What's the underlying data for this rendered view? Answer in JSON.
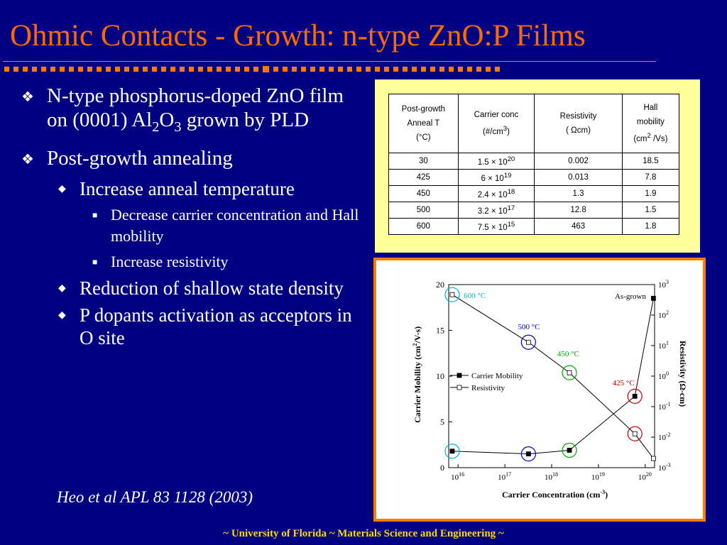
{
  "slide": {
    "title": "Ohmic Contacts - Growth: n-type ZnO:P Films",
    "footer": "~ University of Florida ~ Materials Science and Engineering ~",
    "citation": "Heo et al APL 83 1128 (2003)"
  },
  "bullets": {
    "b1_a": "N-type phosphorus-doped ZnO film on (0001) Al",
    "b1_a_sub1": "2",
    "b1_a_mid": "O",
    "b1_a_sub2": "3",
    "b1_a_end": " grown by PLD",
    "b2": "Post-growth annealing",
    "b2_1": "Increase anneal temperature",
    "b2_1_1": "Decrease carrier concentration and Hall mobility",
    "b2_1_2": "Increase resistivity",
    "b2_2": "Reduction of shallow state density",
    "b2_3": "P dopants activation as acceptors in O site"
  },
  "table": {
    "headers": {
      "anneal_1": "Post-growth",
      "anneal_2": "Anneal T",
      "anneal_3": "(°C)",
      "conc_1": "Carrier conc",
      "conc_2": "(#/cm",
      "conc_sup": "3",
      "conc_3": ")",
      "res_1": "Resistivity",
      "res_2": "( Ωcm)",
      "hall_1": "Hall",
      "hall_2": "mobility",
      "hall_3": "(cm",
      "hall_sup": "2",
      "hall_4": " /Vs)"
    },
    "rows": [
      {
        "t": "30",
        "mant": "1.5  × 10",
        "exp": "20",
        "res": "0.002",
        "mob": "18.5"
      },
      {
        "t": "425",
        "mant": "6  × 10",
        "exp": "19",
        "res": "0.013",
        "mob": "7.8"
      },
      {
        "t": "450",
        "mant": "2.4  × 10",
        "exp": "18",
        "res": "1.3",
        "mob": "1.9"
      },
      {
        "t": "500",
        "mant": "3.2  × 10",
        "exp": "17",
        "res": "12.8",
        "mob": "1.5"
      },
      {
        "t": "600",
        "mant": "7.5  × 10",
        "exp": "15",
        "res": "463",
        "mob": "1.8"
      }
    ]
  },
  "chart_data": {
    "type": "line",
    "xlabel": "Carrier Concentration (cm-3)",
    "ylabel": "Carrier Mobility (cm2/V-s)",
    "y2label": "Resistivity (Ω-cm)",
    "xscale": "log",
    "xlim_exp": [
      15.8,
      20.2
    ],
    "xticks_exp": [
      16,
      17,
      18,
      19,
      20
    ],
    "ylim": [
      0,
      20
    ],
    "yticks": [
      0,
      5,
      10,
      15,
      20
    ],
    "y2scale": "log",
    "y2lim_exp": [
      -3,
      3
    ],
    "y2ticks_exp": [
      3,
      2,
      1,
      0,
      -1,
      -2,
      -3
    ],
    "series": [
      {
        "name": "Carrier Mobility",
        "marker": "filled-square",
        "axis": "left",
        "points": [
          [
            15.875,
            1.8
          ],
          [
            17.505,
            1.5
          ],
          [
            18.38,
            1.9
          ],
          [
            19.778,
            7.8
          ],
          [
            20.176,
            18.5
          ]
        ]
      },
      {
        "name": "Resistivity",
        "marker": "open-square",
        "axis": "right",
        "points": [
          [
            15.875,
            2.67
          ],
          [
            17.505,
            1.11
          ],
          [
            18.38,
            0.11
          ],
          [
            19.778,
            -1.89
          ],
          [
            20.176,
            -2.7
          ]
        ]
      }
    ],
    "annotations": [
      {
        "text": "600 °C",
        "color": "#00b8c8"
      },
      {
        "text": "500 °C",
        "color": "#0000cc"
      },
      {
        "text": "450 °C",
        "color": "#00aa00"
      },
      {
        "text": "425 °C",
        "color": "#cc0000"
      },
      {
        "text": "As-grown",
        "color": "#000000"
      }
    ],
    "legend": "center-left"
  }
}
